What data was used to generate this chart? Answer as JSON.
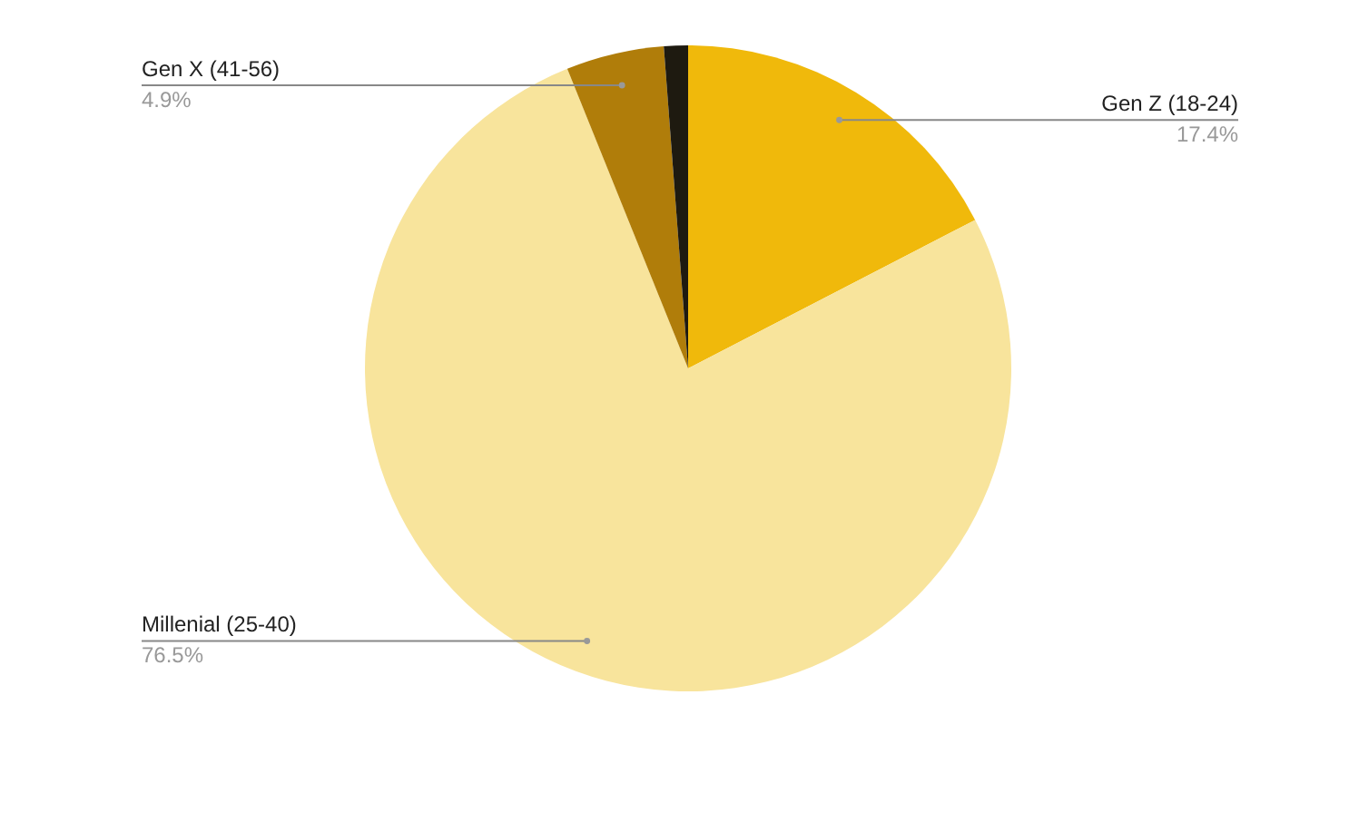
{
  "chart_data": {
    "type": "pie",
    "categories": [
      "Gen Z (18-24)",
      "Millenial (25-40)",
      "Gen X (41-56)",
      null
    ],
    "values": [
      17.4,
      76.5,
      4.9,
      1.2
    ],
    "colors": [
      "#f0b90b",
      "#f8e49c",
      "#b07d0a",
      "#1e1a10"
    ],
    "value_labels": [
      "17.4%",
      "76.5%",
      "4.9%",
      null
    ]
  }
}
